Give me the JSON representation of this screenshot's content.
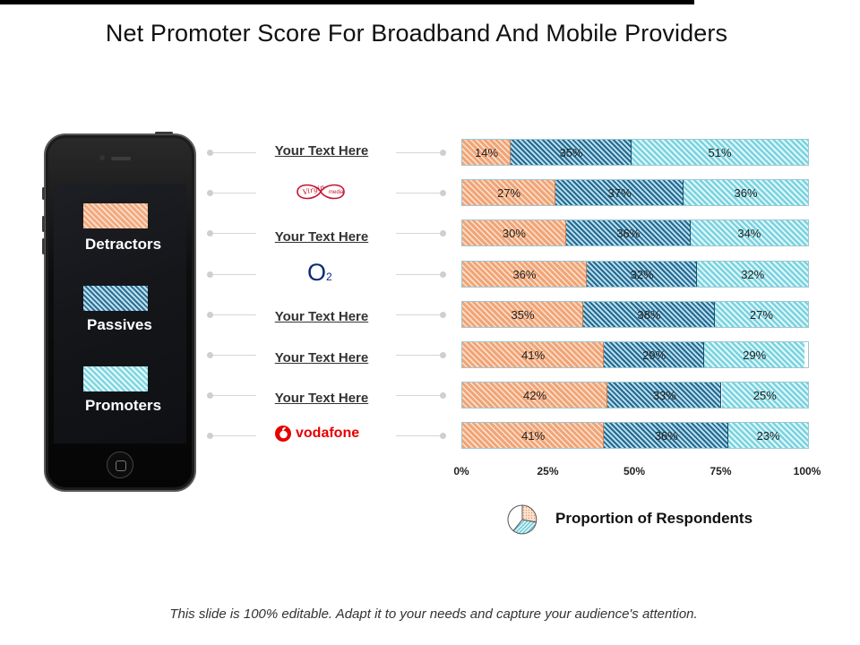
{
  "title": "Net Promoter Score For Broadband And Mobile Providers",
  "legend": {
    "detractors": "Detractors",
    "passives": "Passives",
    "promoters": "Promoters"
  },
  "rows": [
    {
      "label": "Your Text Here",
      "logo": ""
    },
    {
      "label": "",
      "logo": "virgin-media-logo"
    },
    {
      "label": "Your Text Here",
      "logo": ""
    },
    {
      "label": "",
      "logo": "o2-logo"
    },
    {
      "label": "Your Text Here",
      "logo": ""
    },
    {
      "label": "Your Text Here",
      "logo": ""
    },
    {
      "label": "Your Text Here",
      "logo": ""
    },
    {
      "label": "",
      "logo": "vodafone-logo"
    }
  ],
  "logos": {
    "virgin_text": "Virgin",
    "virgin_media": "media",
    "o2_text": "O",
    "o2_sub": "2",
    "vodafone_text": "vodafone"
  },
  "chart_data": {
    "type": "bar",
    "orientation": "horizontal",
    "stacked": true,
    "categories": [
      "Your Text Here",
      "Virgin Media",
      "Your Text Here",
      "O2",
      "Your Text Here",
      "Your Text Here",
      "Your Text Here",
      "Vodafone"
    ],
    "series": [
      {
        "name": "Detractors",
        "values": [
          14,
          27,
          30,
          36,
          35,
          41,
          42,
          41
        ]
      },
      {
        "name": "Passives",
        "values": [
          35,
          37,
          36,
          32,
          38,
          29,
          33,
          36
        ]
      },
      {
        "name": "Promoters",
        "values": [
          51,
          36,
          34,
          32,
          27,
          29,
          25,
          23
        ]
      }
    ],
    "xlim": [
      0,
      100
    ],
    "x_ticks": [
      "0%",
      "25%",
      "50%",
      "75%",
      "100%"
    ],
    "xlabel": "Proportion of Respondents",
    "colors": {
      "Detractors": "#f0a577",
      "Passives": "#226a90",
      "Promoters": "#78d3df"
    }
  },
  "axis_caption": "Proportion of Respondents",
  "footer": "This slide is 100% editable. Adapt it to your needs and capture your audience's attention."
}
